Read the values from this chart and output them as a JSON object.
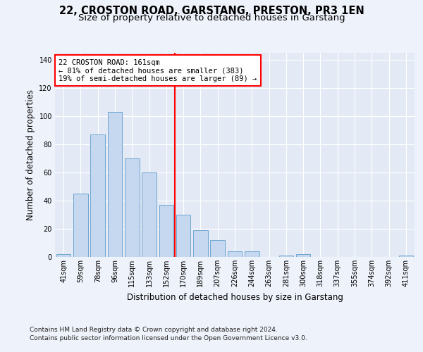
{
  "title": "22, CROSTON ROAD, GARSTANG, PRESTON, PR3 1EN",
  "subtitle": "Size of property relative to detached houses in Garstang",
  "xlabel": "Distribution of detached houses by size in Garstang",
  "ylabel": "Number of detached properties",
  "categories": [
    "41sqm",
    "59sqm",
    "78sqm",
    "96sqm",
    "115sqm",
    "133sqm",
    "152sqm",
    "170sqm",
    "189sqm",
    "207sqm",
    "226sqm",
    "244sqm",
    "263sqm",
    "281sqm",
    "300sqm",
    "318sqm",
    "337sqm",
    "355sqm",
    "374sqm",
    "392sqm",
    "411sqm"
  ],
  "values": [
    2,
    45,
    87,
    103,
    70,
    60,
    37,
    30,
    19,
    12,
    4,
    4,
    0,
    1,
    2,
    0,
    0,
    0,
    0,
    0,
    1
  ],
  "bar_color": "#c5d8f0",
  "bar_edge_color": "#6ea6d0",
  "red_line_index": 6.5,
  "property_sqm": 161,
  "annotation_title": "22 CROSTON ROAD: 161sqm",
  "annotation_line1": "← 81% of detached houses are smaller (383)",
  "annotation_line2": "19% of semi-detached houses are larger (89) →",
  "footer_line1": "Contains HM Land Registry data © Crown copyright and database right 2024.",
  "footer_line2": "Contains public sector information licensed under the Open Government Licence v3.0.",
  "ylim": [
    0,
    145
  ],
  "yticks": [
    0,
    20,
    40,
    60,
    80,
    100,
    120,
    140
  ],
  "bg_color": "#eef2fa",
  "plot_bg_color": "#e4eaf5",
  "grid_color": "#ffffff",
  "title_fontsize": 10.5,
  "subtitle_fontsize": 9.5,
  "ylabel_fontsize": 8.5,
  "xlabel_fontsize": 8.5,
  "tick_fontsize": 7,
  "annotation_fontsize": 7.5,
  "footer_fontsize": 6.5
}
